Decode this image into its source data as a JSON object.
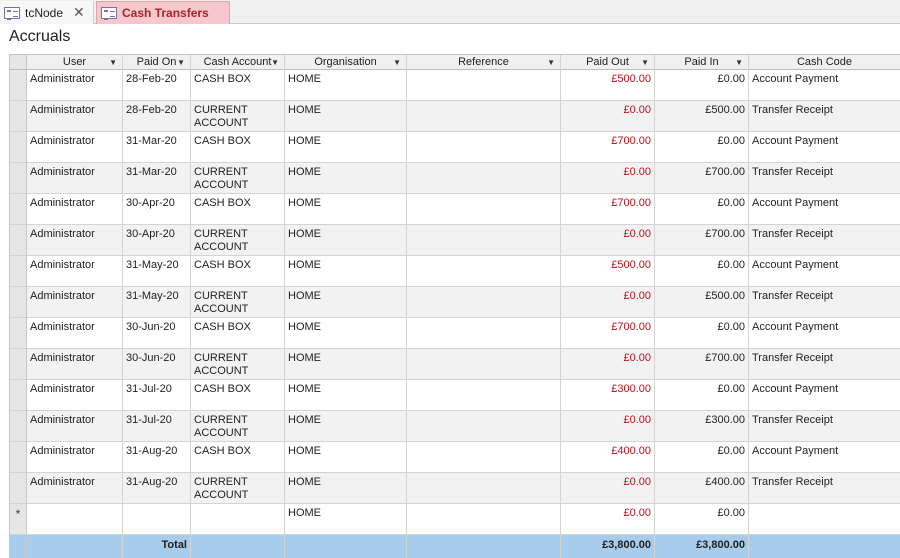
{
  "tabs": [
    {
      "label": "tcNode",
      "active": false
    },
    {
      "label": "Cash Transfers",
      "active": true
    }
  ],
  "form_title": "Accruals",
  "columns": {
    "user": "User",
    "paid_on": "Paid On",
    "cash_account": "Cash Account",
    "organisation": "Organisation",
    "reference": "Reference",
    "paid_out": "Paid Out",
    "paid_in": "Paid In",
    "cash_code": "Cash Code"
  },
  "rows": [
    {
      "user": "Administrator",
      "paid_on": "28-Feb-20",
      "cash_account": "CASH BOX",
      "organisation": "HOME",
      "reference": "",
      "paid_out": "£500.00",
      "paid_in": "£0.00",
      "cash_code": "Account Payment"
    },
    {
      "user": "Administrator",
      "paid_on": "28-Feb-20",
      "cash_account": "CURRENT ACCOUNT",
      "organisation": "HOME",
      "reference": "",
      "paid_out": "£0.00",
      "paid_in": "£500.00",
      "cash_code": "Transfer Receipt"
    },
    {
      "user": "Administrator",
      "paid_on": "31-Mar-20",
      "cash_account": "CASH BOX",
      "organisation": "HOME",
      "reference": "",
      "paid_out": "£700.00",
      "paid_in": "£0.00",
      "cash_code": "Account Payment"
    },
    {
      "user": "Administrator",
      "paid_on": "31-Mar-20",
      "cash_account": "CURRENT ACCOUNT",
      "organisation": "HOME",
      "reference": "",
      "paid_out": "£0.00",
      "paid_in": "£700.00",
      "cash_code": "Transfer Receipt"
    },
    {
      "user": "Administrator",
      "paid_on": "30-Apr-20",
      "cash_account": "CASH BOX",
      "organisation": "HOME",
      "reference": "",
      "paid_out": "£700.00",
      "paid_in": "£0.00",
      "cash_code": "Account Payment"
    },
    {
      "user": "Administrator",
      "paid_on": "30-Apr-20",
      "cash_account": "CURRENT ACCOUNT",
      "organisation": "HOME",
      "reference": "",
      "paid_out": "£0.00",
      "paid_in": "£700.00",
      "cash_code": "Transfer Receipt"
    },
    {
      "user": "Administrator",
      "paid_on": "31-May-20",
      "cash_account": "CASH BOX",
      "organisation": "HOME",
      "reference": "",
      "paid_out": "£500.00",
      "paid_in": "£0.00",
      "cash_code": "Account Payment"
    },
    {
      "user": "Administrator",
      "paid_on": "31-May-20",
      "cash_account": "CURRENT ACCOUNT",
      "organisation": "HOME",
      "reference": "",
      "paid_out": "£0.00",
      "paid_in": "£500.00",
      "cash_code": "Transfer Receipt"
    },
    {
      "user": "Administrator",
      "paid_on": "30-Jun-20",
      "cash_account": "CASH BOX",
      "organisation": "HOME",
      "reference": "",
      "paid_out": "£700.00",
      "paid_in": "£0.00",
      "cash_code": "Account Payment"
    },
    {
      "user": "Administrator",
      "paid_on": "30-Jun-20",
      "cash_account": "CURRENT ACCOUNT",
      "organisation": "HOME",
      "reference": "",
      "paid_out": "£0.00",
      "paid_in": "£700.00",
      "cash_code": "Transfer Receipt"
    },
    {
      "user": "Administrator",
      "paid_on": "31-Jul-20",
      "cash_account": "CASH BOX",
      "organisation": "HOME",
      "reference": "",
      "paid_out": "£300.00",
      "paid_in": "£0.00",
      "cash_code": "Account Payment"
    },
    {
      "user": "Administrator",
      "paid_on": "31-Jul-20",
      "cash_account": "CURRENT ACCOUNT",
      "organisation": "HOME",
      "reference": "",
      "paid_out": "£0.00",
      "paid_in": "£300.00",
      "cash_code": "Transfer Receipt"
    },
    {
      "user": "Administrator",
      "paid_on": "31-Aug-20",
      "cash_account": "CASH BOX",
      "organisation": "HOME",
      "reference": "",
      "paid_out": "£400.00",
      "paid_in": "£0.00",
      "cash_code": "Account Payment"
    },
    {
      "user": "Administrator",
      "paid_on": "31-Aug-20",
      "cash_account": "CURRENT ACCOUNT",
      "organisation": "HOME",
      "reference": "",
      "paid_out": "£0.00",
      "paid_in": "£400.00",
      "cash_code": "Transfer Receipt"
    }
  ],
  "new_row": {
    "marker": "*",
    "organisation": "HOME",
    "paid_out": "£0.00",
    "paid_in": "£0.00"
  },
  "totals": {
    "label": "Total",
    "paid_out": "£3,800.00",
    "paid_in": "£3,800.00"
  },
  "colors": {
    "paid_out_text": "#c0101b",
    "total_row_bg": "#a7ccec",
    "active_tab_bg": "#f6c8cc"
  }
}
